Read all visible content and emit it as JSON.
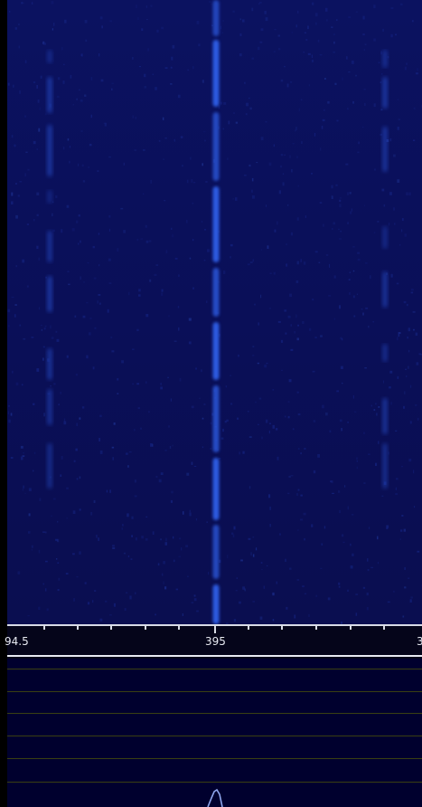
{
  "frequency_scale": {
    "labels": [
      {
        "text": "94.5"
      },
      {
        "text": "395"
      },
      {
        "text": "3"
      }
    ]
  },
  "colors": {
    "waterfall_background": "#0a0f55",
    "signal": "#2e5fe8",
    "spectrum_background": "#00002e",
    "grid": "#3a3f12",
    "scale_text": "#e8eaf2"
  }
}
